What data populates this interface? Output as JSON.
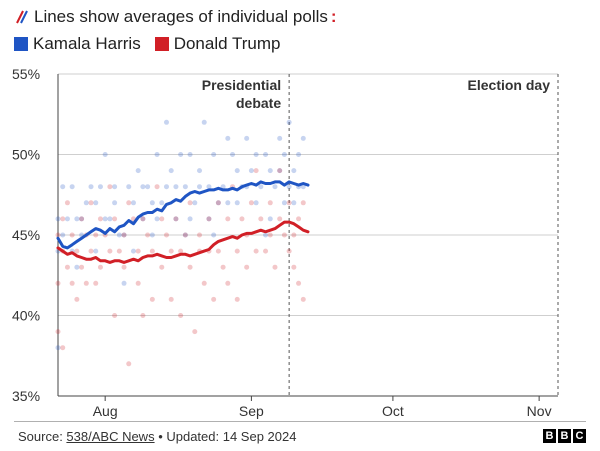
{
  "header": {
    "subtitle": "Lines show averages of individual polls",
    "colon": ":",
    "legend": [
      {
        "name": "Kamala Harris",
        "color": "#1f55c4"
      },
      {
        "name": "Donald Trump",
        "color": "#d11f26"
      }
    ]
  },
  "chart_data": {
    "type": "line",
    "title": "Lines show averages of individual polls",
    "xlabel": "",
    "ylabel": "",
    "x_unit": "days since 22 Jul 2024",
    "xlim": [
      0,
      106
    ],
    "ylim": [
      35,
      55
    ],
    "yticks": [
      35,
      40,
      45,
      50,
      55
    ],
    "ytick_labels": [
      "35%",
      "40%",
      "45%",
      "50%",
      "55%"
    ],
    "xticks": [
      {
        "x": 10,
        "label": "Aug"
      },
      {
        "x": 41,
        "label": "Sep"
      },
      {
        "x": 71,
        "label": "Oct"
      },
      {
        "x": 102,
        "label": "Nov"
      }
    ],
    "annotations": [
      {
        "x": 49,
        "lines": [
          "Presidential",
          "debate"
        ]
      },
      {
        "x": 106,
        "lines": [
          "Election day"
        ]
      }
    ],
    "series": [
      {
        "name": "Kamala Harris",
        "color": "#1f55c4",
        "x": [
          0,
          1,
          2,
          3,
          4,
          5,
          6,
          7,
          8,
          9,
          10,
          11,
          12,
          13,
          14,
          15,
          16,
          17,
          18,
          19,
          20,
          21,
          22,
          23,
          24,
          25,
          26,
          27,
          28,
          29,
          30,
          31,
          32,
          33,
          34,
          35,
          36,
          37,
          38,
          39,
          40,
          41,
          42,
          43,
          44,
          45,
          46,
          47,
          48,
          49,
          50,
          51,
          52,
          53
        ],
        "y": [
          44.8,
          44.3,
          44.2,
          44.4,
          44.6,
          44.8,
          45.0,
          45.2,
          45.4,
          45.3,
          45.1,
          45.4,
          45.2,
          45.5,
          45.6,
          45.9,
          45.7,
          46.1,
          46.3,
          46.4,
          46.4,
          46.6,
          46.5,
          46.9,
          47.0,
          47.2,
          47.1,
          47.4,
          47.6,
          47.7,
          47.6,
          47.7,
          47.8,
          47.8,
          47.9,
          47.8,
          47.8,
          47.9,
          47.8,
          48.0,
          48.1,
          48.2,
          48.1,
          48.3,
          48.2,
          48.2,
          48.3,
          48.3,
          48.1,
          48.3,
          48.2,
          48.1,
          48.2,
          48.1
        ]
      },
      {
        "name": "Donald Trump",
        "color": "#d11f26",
        "x": [
          0,
          1,
          2,
          3,
          4,
          5,
          6,
          7,
          8,
          9,
          10,
          11,
          12,
          13,
          14,
          15,
          16,
          17,
          18,
          19,
          20,
          21,
          22,
          23,
          24,
          25,
          26,
          27,
          28,
          29,
          30,
          31,
          32,
          33,
          34,
          35,
          36,
          37,
          38,
          39,
          40,
          41,
          42,
          43,
          44,
          45,
          46,
          47,
          48,
          49,
          50,
          51,
          52,
          53
        ],
        "y": [
          44.2,
          44.0,
          43.8,
          43.9,
          43.7,
          43.6,
          43.5,
          43.5,
          43.6,
          43.4,
          43.4,
          43.3,
          43.4,
          43.4,
          43.3,
          43.4,
          43.5,
          43.4,
          43.6,
          43.7,
          43.7,
          43.8,
          43.7,
          43.6,
          43.6,
          43.7,
          43.8,
          43.8,
          43.7,
          43.8,
          43.9,
          44.0,
          44.1,
          44.4,
          44.6,
          44.7,
          44.8,
          44.9,
          44.8,
          45.0,
          45.1,
          45.1,
          45.2,
          45.3,
          45.2,
          45.3,
          45.4,
          45.6,
          45.8,
          45.8,
          45.7,
          45.5,
          45.3,
          45.2
        ]
      }
    ],
    "polls": [
      {
        "name": "Kamala Harris poll",
        "color": "#1f55c4",
        "x": [
          0,
          0,
          0,
          1,
          1,
          2,
          3,
          3,
          4,
          4,
          5,
          5,
          6,
          7,
          8,
          8,
          9,
          10,
          10,
          11,
          12,
          12,
          13,
          14,
          14,
          15,
          16,
          16,
          17,
          18,
          18,
          19,
          20,
          20,
          21,
          21,
          22,
          23,
          23,
          24,
          25,
          25,
          26,
          27,
          27,
          28,
          28,
          29,
          30,
          30,
          31,
          32,
          32,
          33,
          33,
          34,
          35,
          36,
          36,
          37,
          38,
          38,
          39,
          40,
          40,
          41,
          42,
          42,
          43,
          44,
          44,
          45,
          45,
          46,
          47,
          47,
          48,
          48,
          49,
          49,
          50,
          50,
          51,
          51,
          52,
          52
        ],
        "y": [
          44,
          46,
          38,
          48,
          45,
          46,
          44,
          48,
          46,
          43,
          46,
          45,
          47,
          48,
          47,
          44,
          48,
          50,
          46,
          46,
          48,
          47,
          45,
          42,
          45,
          48,
          47,
          44,
          49,
          46,
          48,
          48,
          45,
          47,
          46,
          50,
          47,
          52,
          48,
          49,
          46,
          48,
          50,
          45,
          48,
          46,
          50,
          47,
          49,
          48,
          52,
          48,
          46,
          50,
          45,
          47,
          48,
          51,
          47,
          50,
          49,
          47,
          48,
          51,
          48,
          49,
          50,
          47,
          48,
          50,
          45,
          49,
          46,
          48,
          51,
          49,
          50,
          47,
          52,
          48,
          49,
          47,
          50,
          48,
          51,
          48
        ]
      },
      {
        "name": "Donald Trump poll",
        "color": "#d11f26",
        "x": [
          0,
          0,
          0,
          1,
          1,
          1,
          2,
          2,
          3,
          3,
          4,
          4,
          5,
          5,
          6,
          6,
          7,
          7,
          8,
          8,
          9,
          9,
          10,
          11,
          11,
          12,
          12,
          13,
          14,
          14,
          15,
          15,
          16,
          17,
          17,
          18,
          18,
          19,
          20,
          20,
          21,
          22,
          22,
          23,
          24,
          24,
          25,
          26,
          26,
          27,
          28,
          28,
          29,
          30,
          30,
          31,
          32,
          32,
          33,
          34,
          34,
          35,
          36,
          36,
          37,
          38,
          38,
          39,
          40,
          40,
          41,
          42,
          42,
          43,
          44,
          45,
          45,
          46,
          47,
          47,
          48,
          49,
          49,
          50,
          50,
          51,
          51,
          52,
          52
        ],
        "y": [
          45,
          42,
          39,
          46,
          44,
          38,
          47,
          43,
          45,
          42,
          44,
          41,
          46,
          43,
          45,
          42,
          47,
          44,
          45,
          42,
          46,
          43,
          45,
          44,
          48,
          46,
          40,
          44,
          45,
          43,
          47,
          37,
          46,
          44,
          42,
          46,
          40,
          45,
          44,
          41,
          48,
          43,
          46,
          45,
          44,
          41,
          46,
          44,
          40,
          45,
          43,
          47,
          39,
          44,
          45,
          42,
          46,
          44,
          41,
          44,
          47,
          43,
          46,
          42,
          48,
          44,
          41,
          46,
          45,
          43,
          47,
          44,
          49,
          46,
          44,
          45,
          47,
          43,
          46,
          49,
          45,
          44,
          47,
          45,
          43,
          46,
          42,
          47,
          41
        ]
      }
    ]
  },
  "footer": {
    "source_prefix": "Source: ",
    "source_link": "538/ABC News",
    "source_suffix": " • Updated: 14 Sep 2024",
    "logo": [
      "B",
      "B",
      "C"
    ]
  }
}
